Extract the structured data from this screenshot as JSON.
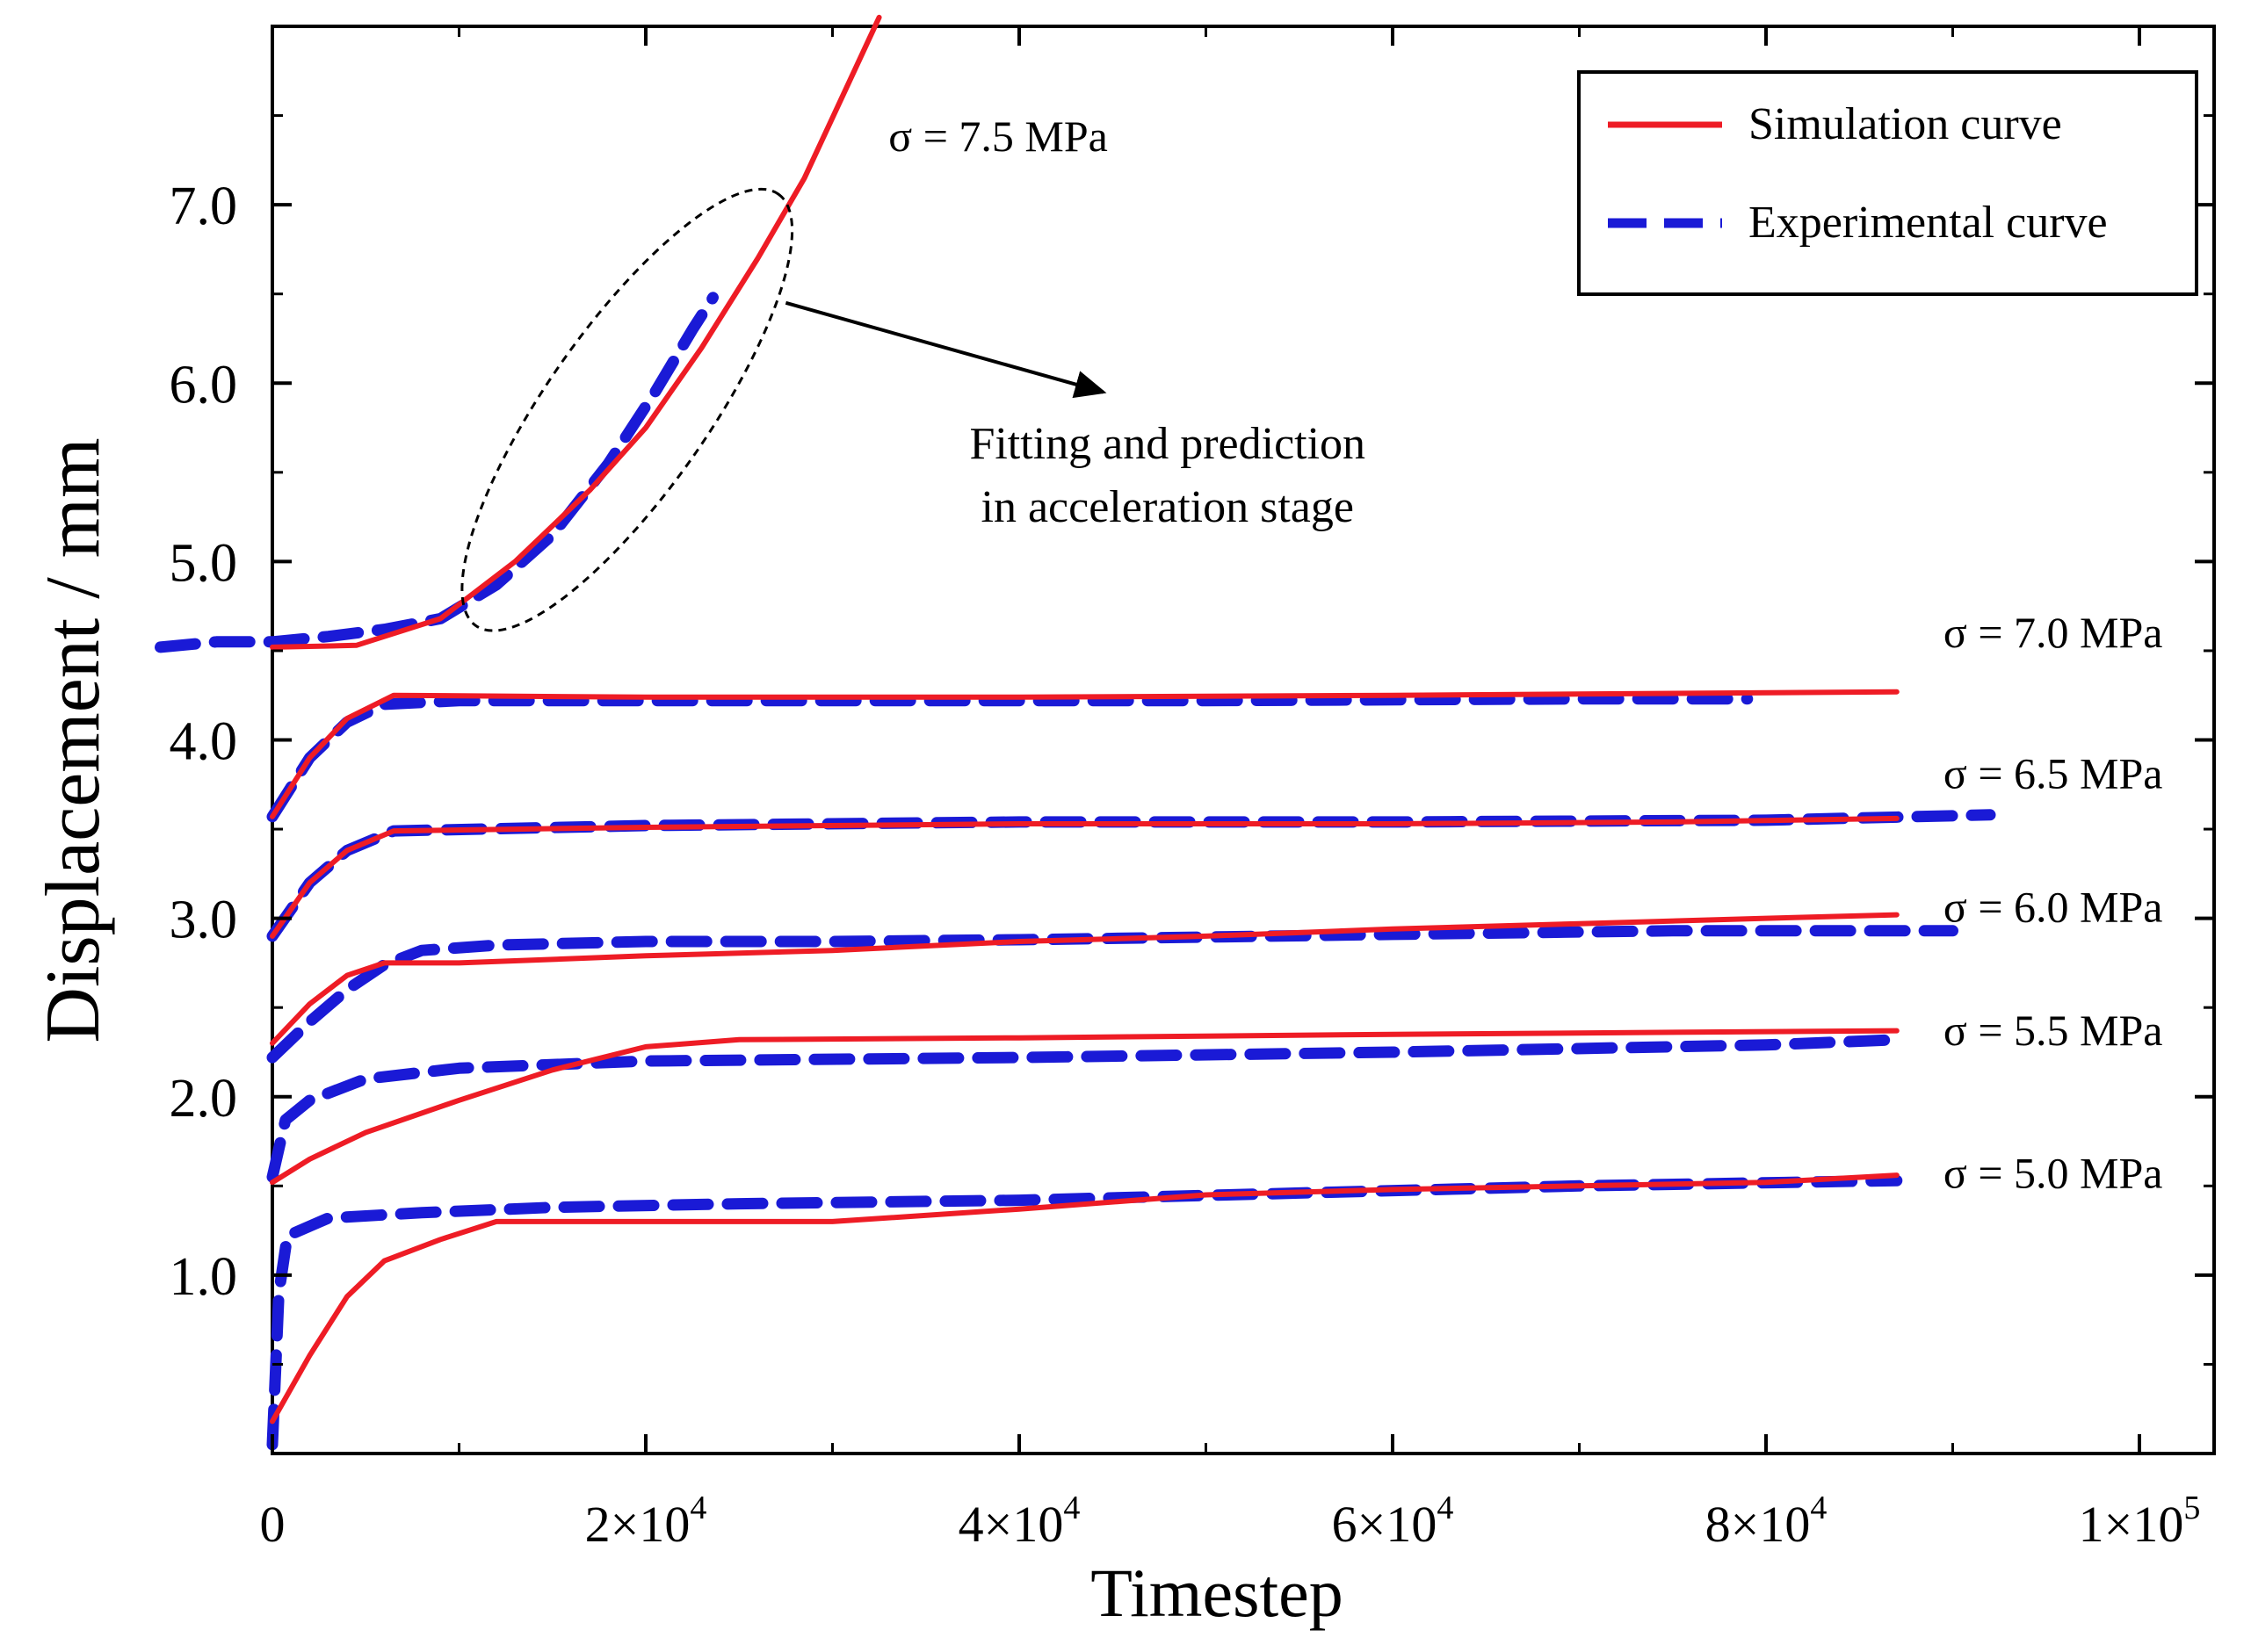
{
  "chart_data": {
    "type": "line",
    "xlabel": "Timestep",
    "ylabel": "Displacement / mm",
    "xlim": [
      0,
      104000
    ],
    "ylim": [
      0,
      8.0
    ],
    "x_ticks": [
      {
        "value": 0,
        "mant": "0",
        "exp": ""
      },
      {
        "value": 20000,
        "mant": "2×10",
        "exp": "4"
      },
      {
        "value": 40000,
        "mant": "4×10",
        "exp": "4"
      },
      {
        "value": 60000,
        "mant": "6×10",
        "exp": "4"
      },
      {
        "value": 80000,
        "mant": "8×10",
        "exp": "4"
      },
      {
        "value": 100000,
        "mant": "1×10",
        "exp": "5"
      }
    ],
    "y_ticks": [
      {
        "value": 1.0,
        "label": "1.0"
      },
      {
        "value": 2.0,
        "label": "2.0"
      },
      {
        "value": 3.0,
        "label": "3.0"
      },
      {
        "value": 4.0,
        "label": "4.0"
      },
      {
        "value": 5.0,
        "label": "5.0"
      },
      {
        "value": 6.0,
        "label": "6.0"
      },
      {
        "value": 7.0,
        "label": "7.0"
      }
    ],
    "legend": {
      "position": "top-right",
      "entries": [
        {
          "label": "Simulation curve",
          "color": "#ee1c25",
          "style": "solid"
        },
        {
          "label": "Experimental curve",
          "color": "#1a1ad6",
          "style": "dashed"
        }
      ]
    },
    "annotations": {
      "ellipse_text_line1": "Fitting and prediction",
      "ellipse_text_line2": "in acceleration stage",
      "ellipse_center": [
        19000,
        5.85
      ],
      "arrow_from": [
        27500,
        6.45
      ],
      "arrow_to": [
        44500,
        5.95
      ],
      "text_anchor": [
        47000,
        5.4
      ]
    },
    "series": [
      {
        "name": "Simulation curve",
        "group": "σ = 7.5 MPa",
        "label_at": [
          33000,
          7.3
        ],
        "color": "#ee1c25",
        "style": "solid",
        "points": [
          [
            0,
            4.52
          ],
          [
            4500,
            4.53
          ],
          [
            9000,
            4.68
          ],
          [
            13000,
            5.0
          ],
          [
            17000,
            5.4
          ],
          [
            20000,
            5.75
          ],
          [
            23000,
            6.2
          ],
          [
            26000,
            6.7
          ],
          [
            28500,
            7.15
          ],
          [
            30500,
            7.6
          ],
          [
            32500,
            8.05
          ]
        ]
      },
      {
        "name": "Experimental curve",
        "group": "σ = 7.5 MPa",
        "color": "#1a1ad6",
        "style": "dashed",
        "points": [
          [
            -6000,
            4.52
          ],
          [
            -3000,
            4.55
          ],
          [
            0,
            4.55
          ],
          [
            3000,
            4.58
          ],
          [
            6000,
            4.62
          ],
          [
            9000,
            4.68
          ],
          [
            12000,
            4.87
          ],
          [
            15000,
            5.15
          ],
          [
            18000,
            5.55
          ],
          [
            20500,
            5.95
          ],
          [
            22500,
            6.3
          ],
          [
            23600,
            6.48
          ]
        ]
      },
      {
        "name": "Simulation curve",
        "group": "σ = 7.0 MPa",
        "label_at": [
          89500,
          4.52
        ],
        "color": "#ee1c25",
        "style": "solid",
        "points": [
          [
            0,
            3.57
          ],
          [
            2000,
            3.9
          ],
          [
            4000,
            4.12
          ],
          [
            6500,
            4.25
          ],
          [
            20000,
            4.24
          ],
          [
            40000,
            4.24
          ],
          [
            60000,
            4.25
          ],
          [
            87000,
            4.27
          ]
        ]
      },
      {
        "name": "Experimental curve",
        "group": "σ = 7.0 MPa",
        "color": "#1a1ad6",
        "style": "dashed",
        "points": [
          [
            0,
            3.57
          ],
          [
            2000,
            3.9
          ],
          [
            4000,
            4.1
          ],
          [
            6000,
            4.2
          ],
          [
            10000,
            4.22
          ],
          [
            30000,
            4.22
          ],
          [
            50000,
            4.22
          ],
          [
            70000,
            4.23
          ],
          [
            79000,
            4.23
          ]
        ]
      },
      {
        "name": "Simulation curve",
        "group": "σ = 6.5 MPa",
        "label_at": [
          89500,
          3.73
        ],
        "color": "#ee1c25",
        "style": "solid",
        "points": [
          [
            0,
            2.9
          ],
          [
            2000,
            3.2
          ],
          [
            4000,
            3.38
          ],
          [
            6500,
            3.49
          ],
          [
            20000,
            3.51
          ],
          [
            40000,
            3.53
          ],
          [
            60000,
            3.53
          ],
          [
            75000,
            3.54
          ],
          [
            87000,
            3.56
          ]
        ]
      },
      {
        "name": "Experimental curve",
        "group": "σ = 6.5 MPa",
        "color": "#1a1ad6",
        "style": "dashed",
        "points": [
          [
            0,
            2.9
          ],
          [
            2000,
            3.2
          ],
          [
            4000,
            3.38
          ],
          [
            6500,
            3.49
          ],
          [
            20000,
            3.52
          ],
          [
            40000,
            3.54
          ],
          [
            60000,
            3.54
          ],
          [
            80000,
            3.55
          ],
          [
            92000,
            3.58
          ]
        ]
      },
      {
        "name": "Simulation curve",
        "group": "σ = 6.0 MPa",
        "label_at": [
          89500,
          2.98
        ],
        "color": "#ee1c25",
        "style": "solid",
        "points": [
          [
            0,
            2.3
          ],
          [
            2000,
            2.52
          ],
          [
            4000,
            2.68
          ],
          [
            6000,
            2.75
          ],
          [
            10000,
            2.75
          ],
          [
            20000,
            2.79
          ],
          [
            30000,
            2.82
          ],
          [
            40000,
            2.87
          ],
          [
            50000,
            2.9
          ],
          [
            60000,
            2.94
          ],
          [
            70000,
            2.97
          ],
          [
            80000,
            3.0
          ],
          [
            87000,
            3.02
          ]
        ]
      },
      {
        "name": "Experimental curve",
        "group": "σ = 6.0 MPa",
        "color": "#1a1ad6",
        "style": "dashed",
        "points": [
          [
            0,
            2.22
          ],
          [
            2000,
            2.42
          ],
          [
            4000,
            2.6
          ],
          [
            6000,
            2.74
          ],
          [
            8000,
            2.82
          ],
          [
            12000,
            2.85
          ],
          [
            20000,
            2.87
          ],
          [
            30000,
            2.87
          ],
          [
            40000,
            2.88
          ],
          [
            60000,
            2.91
          ],
          [
            75000,
            2.93
          ],
          [
            90000,
            2.93
          ]
        ]
      },
      {
        "name": "Simulation curve",
        "group": "σ = 5.5 MPa",
        "label_at": [
          89500,
          2.29
        ],
        "color": "#ee1c25",
        "style": "solid",
        "points": [
          [
            0,
            1.52
          ],
          [
            2000,
            1.65
          ],
          [
            5000,
            1.8
          ],
          [
            10000,
            1.98
          ],
          [
            15000,
            2.15
          ],
          [
            20000,
            2.28
          ],
          [
            25000,
            2.32
          ],
          [
            40000,
            2.33
          ],
          [
            60000,
            2.35
          ],
          [
            87000,
            2.37
          ]
        ]
      },
      {
        "name": "Experimental curve",
        "group": "σ = 5.5 MPa",
        "color": "#1a1ad6",
        "style": "dashed",
        "points": [
          [
            0,
            1.55
          ],
          [
            700,
            1.87
          ],
          [
            2000,
            1.98
          ],
          [
            5000,
            2.1
          ],
          [
            10000,
            2.16
          ],
          [
            20000,
            2.2
          ],
          [
            40000,
            2.22
          ],
          [
            60000,
            2.25
          ],
          [
            80000,
            2.29
          ],
          [
            87000,
            2.32
          ]
        ]
      },
      {
        "name": "Simulation curve",
        "group": "σ = 5.0 MPa",
        "label_at": [
          89500,
          1.49
        ],
        "color": "#ee1c25",
        "style": "solid",
        "points": [
          [
            0,
            0.18
          ],
          [
            2000,
            0.55
          ],
          [
            4000,
            0.88
          ],
          [
            6000,
            1.08
          ],
          [
            9000,
            1.2
          ],
          [
            12000,
            1.3
          ],
          [
            20000,
            1.3
          ],
          [
            30000,
            1.3
          ],
          [
            40000,
            1.37
          ],
          [
            50000,
            1.45
          ],
          [
            60000,
            1.48
          ],
          [
            70000,
            1.5
          ],
          [
            80000,
            1.52
          ],
          [
            87000,
            1.56
          ]
        ]
      },
      {
        "name": "Experimental curve",
        "group": "σ = 5.0 MPa",
        "color": "#1a1ad6",
        "style": "dashed",
        "points": [
          [
            0,
            0.05
          ],
          [
            350,
            0.9
          ],
          [
            800,
            1.22
          ],
          [
            3000,
            1.32
          ],
          [
            8000,
            1.35
          ],
          [
            15000,
            1.38
          ],
          [
            25000,
            1.4
          ],
          [
            40000,
            1.42
          ],
          [
            55000,
            1.46
          ],
          [
            70000,
            1.5
          ],
          [
            87000,
            1.53
          ]
        ]
      }
    ]
  }
}
